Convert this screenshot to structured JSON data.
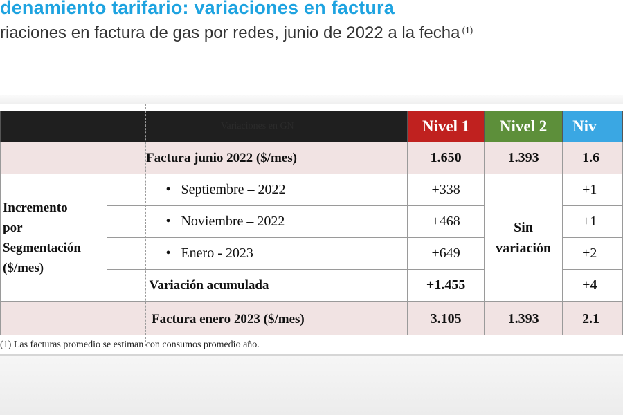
{
  "slide": {
    "title": "denamiento tarifario: variaciones en factura",
    "subtitle": "riaciones en factura de gas por redes, junio de 2022 a la fecha",
    "subtitle_note": "(1)"
  },
  "table": {
    "header": {
      "variaciones": "Variaciones en GN",
      "nivel1": "Nivel 1",
      "nivel2": "Nivel 2",
      "nivel3": "Niv"
    },
    "factura_junio": {
      "label": "Factura junio 2022 ($/mes)",
      "n1": "1.650",
      "n2": "1.393",
      "n3": "1.6"
    },
    "incremento_label_lines": [
      "Incremento",
      "por",
      "Segmentación",
      "($/mes)"
    ],
    "items": [
      {
        "bullet": "•",
        "label": "Septiembre – 2022",
        "n1": "+338",
        "n3": "+1"
      },
      {
        "bullet": "•",
        "label": "Noviembre – 2022",
        "n1": "+468",
        "n3": "+1"
      },
      {
        "bullet": "•",
        "label": "Enero - 2023",
        "n1": "+649",
        "n3": "+2"
      }
    ],
    "sin_variacion_lines": [
      "Sin",
      "variación"
    ],
    "variacion_acumulada": {
      "label": "Variación acumulada",
      "n1": "+1.455",
      "n3": "+4"
    },
    "factura_enero": {
      "label": "Factura enero 2023 ($/mes)",
      "n1": "3.105",
      "n2": "1.393",
      "n3": "2.1"
    }
  },
  "footnote": "(1) Las facturas promedio se estiman con consumos promedio año.",
  "colors": {
    "title": "#1ea3e0",
    "nivel1": "#c0211f",
    "nivel2": "#5d8f3a",
    "nivel3": "#3aa7e3",
    "row_pink": "#f1e3e3",
    "header_dark": "#1f1f1f"
  }
}
